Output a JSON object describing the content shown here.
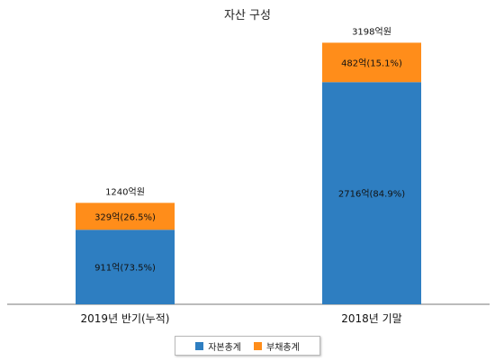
{
  "chart_data": {
    "type": "bar",
    "stacked": true,
    "title": "자산 구성",
    "categories": [
      "2019년 반기(누적)",
      "2018년 기말"
    ],
    "totals": [
      1240,
      3198
    ],
    "total_labels": [
      "1240억원",
      "3198억원"
    ],
    "series": [
      {
        "name": "자본총계",
        "color": "#2e7ec1",
        "values": [
          911,
          2716
        ],
        "labels": [
          "911억(73.5%)",
          "2716억(84.9%)"
        ]
      },
      {
        "name": "부채총계",
        "color": "#ff8d1a",
        "values": [
          329,
          482
        ],
        "labels": [
          "329억(26.5%)",
          "482억(15.1%)"
        ]
      }
    ],
    "ylim": [
      0,
      3500
    ],
    "grid": false,
    "legend_position": "bottom"
  }
}
